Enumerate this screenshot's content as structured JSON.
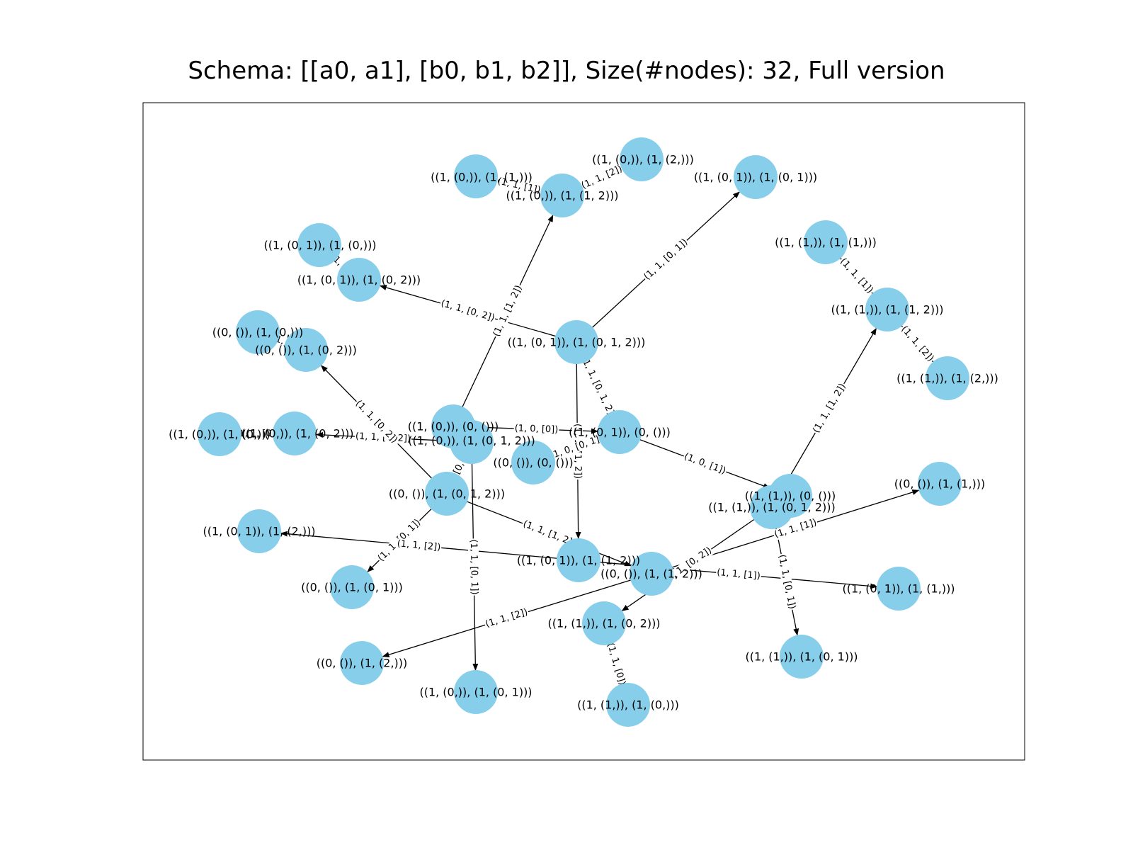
{
  "title": "Schema: [[a0, a1], [b0, b1, b2]], Size(#nodes): 32, Full version",
  "colors": {
    "node": "#87ceeb",
    "edge": "#000000",
    "frame": "#000000"
  },
  "nodes": [
    {
      "id": "n1",
      "label": "((1, (0,)), (1, (1,)))"
    },
    {
      "id": "n2",
      "label": "((1, (0,)), (1, (2,)))"
    },
    {
      "id": "n3",
      "label": "((1, (0,)), (1, (1, 2)))"
    },
    {
      "id": "n4",
      "label": "((1, (0, 1)), (1, (0, 1)))"
    },
    {
      "id": "n5",
      "label": "((1, (0, 1)), (1, (0,)))"
    },
    {
      "id": "n6",
      "label": "((1, (0, 1)), (1, (0, 2)))"
    },
    {
      "id": "n7",
      "label": "((1, (1,)), (1, (1,)))"
    },
    {
      "id": "n8",
      "label": "((1, (1,)), (1, (1, 2)))"
    },
    {
      "id": "n9",
      "label": "((1, (1,)), (1, (2,)))"
    },
    {
      "id": "n10",
      "label": "((0, ()), (1, (0,)))"
    },
    {
      "id": "n11",
      "label": "((0, ()), (1, (0, 2)))"
    },
    {
      "id": "n12",
      "label": "((1, (0, 1)), (1, (0, 1, 2)))"
    },
    {
      "id": "n13",
      "label": "((1, (0,)), (1, (0,)))"
    },
    {
      "id": "n14",
      "label": "((1, (0,)), (1, (0, 2)))"
    },
    {
      "id": "n15",
      "label": "((1, (0,)), (0, ()))"
    },
    {
      "id": "n16",
      "label": "((1, (0,)), (1, (0, 1, 2)))"
    },
    {
      "id": "n17",
      "label": "((1, (0, 1)), (0, ()))"
    },
    {
      "id": "n18",
      "label": "((0, ()), (0, ()))"
    },
    {
      "id": "n19",
      "label": "((0, ()), (1, (0, 1, 2)))"
    },
    {
      "id": "n20",
      "label": "((1, (1,)), (0, ()))"
    },
    {
      "id": "n21",
      "label": "((1, (1,)), (1, (0, 1, 2)))"
    },
    {
      "id": "n22",
      "label": "((0, ()), (1, (1,)))"
    },
    {
      "id": "n23",
      "label": "((1, (0, 1)), (1, (2,)))"
    },
    {
      "id": "n24",
      "label": "((1, (0, 1)), (1, (1, 2)))"
    },
    {
      "id": "n25",
      "label": "((0, ()), (1, (1, 2)))"
    },
    {
      "id": "n26",
      "label": "((0, ()), (1, (0, 1)))"
    },
    {
      "id": "n27",
      "label": "((1, (0, 1)), (1, (1,)))"
    },
    {
      "id": "n28",
      "label": "((1, (1,)), (1, (0, 2)))"
    },
    {
      "id": "n29",
      "label": "((0, ()), (1, (2,)))"
    },
    {
      "id": "n30",
      "label": "((1, (1,)), (1, (0, 1)))"
    },
    {
      "id": "n31",
      "label": "((1, (0,)), (1, (0, 1)))"
    },
    {
      "id": "n32",
      "label": "((1, (1,)), (1, (0,)))"
    }
  ],
  "edges": [
    {
      "from": "n3",
      "to": "n1",
      "label": "(1, 1, [1])"
    },
    {
      "from": "n3",
      "to": "n2",
      "label": "(1, 1, [2])"
    },
    {
      "from": "n6",
      "to": "n5",
      "label": "(1, 1, [0])"
    },
    {
      "from": "n8",
      "to": "n7",
      "label": "(1, 1, [1])"
    },
    {
      "from": "n8",
      "to": "n9",
      "label": "(1, 1, [2])"
    },
    {
      "from": "n11",
      "to": "n10",
      "label": "(1, 1, [0])"
    },
    {
      "from": "n12",
      "to": "n4",
      "label": "(1, 1, [0, 1])"
    },
    {
      "from": "n12",
      "to": "n6",
      "label": "(1, 1, [0, 2])"
    },
    {
      "from": "n12",
      "to": "n24",
      "label": "(1, 1, [1, 2])"
    },
    {
      "from": "n12",
      "to": "n17",
      "label": "(1, 1, [0, 1, 2])"
    },
    {
      "from": "n14",
      "to": "n13",
      "label": "(1, 1, [0])"
    },
    {
      "from": "n15",
      "to": "n3",
      "label": "(1, 1, [1, 2])"
    },
    {
      "from": "n15",
      "to": "n17",
      "label": "(1, 0, [0])"
    },
    {
      "from": "n16",
      "to": "n14",
      "label": "(1, 1, [0, 2])"
    },
    {
      "from": "n16",
      "to": "n31",
      "label": "(1, 1, [0, 1])"
    },
    {
      "from": "n17",
      "to": "n18",
      "label": "(1, 0, [0, 1])"
    },
    {
      "from": "n17",
      "to": "n20",
      "label": "(1, 0, [1])"
    },
    {
      "from": "n19",
      "to": "n11",
      "label": "(1, 1, [0, 2])"
    },
    {
      "from": "n19",
      "to": "n26",
      "label": "(1, 1, [0, 1])"
    },
    {
      "from": "n19",
      "to": "n25",
      "label": "(1, 1, [1, 2])"
    },
    {
      "from": "n19",
      "to": "n16",
      "label": "(1, 1, [0, 1, 2])"
    },
    {
      "from": "n21",
      "to": "n8",
      "label": "(1, 1, [1, 2])"
    },
    {
      "from": "n21",
      "to": "n30",
      "label": "(1, 1, [0, 1])"
    },
    {
      "from": "n21",
      "to": "n28",
      "label": "(1, 1, [0, 2])"
    },
    {
      "from": "n24",
      "to": "n23",
      "label": "(1, 1, [2])"
    },
    {
      "from": "n24",
      "to": "n27",
      "label": "(1, 1, [1])"
    },
    {
      "from": "n25",
      "to": "n22",
      "label": "(1, 1, [1])"
    },
    {
      "from": "n25",
      "to": "n29",
      "label": "(1, 1, [2])"
    },
    {
      "from": "n28",
      "to": "n32",
      "label": "(1, 1, [0])"
    }
  ]
}
